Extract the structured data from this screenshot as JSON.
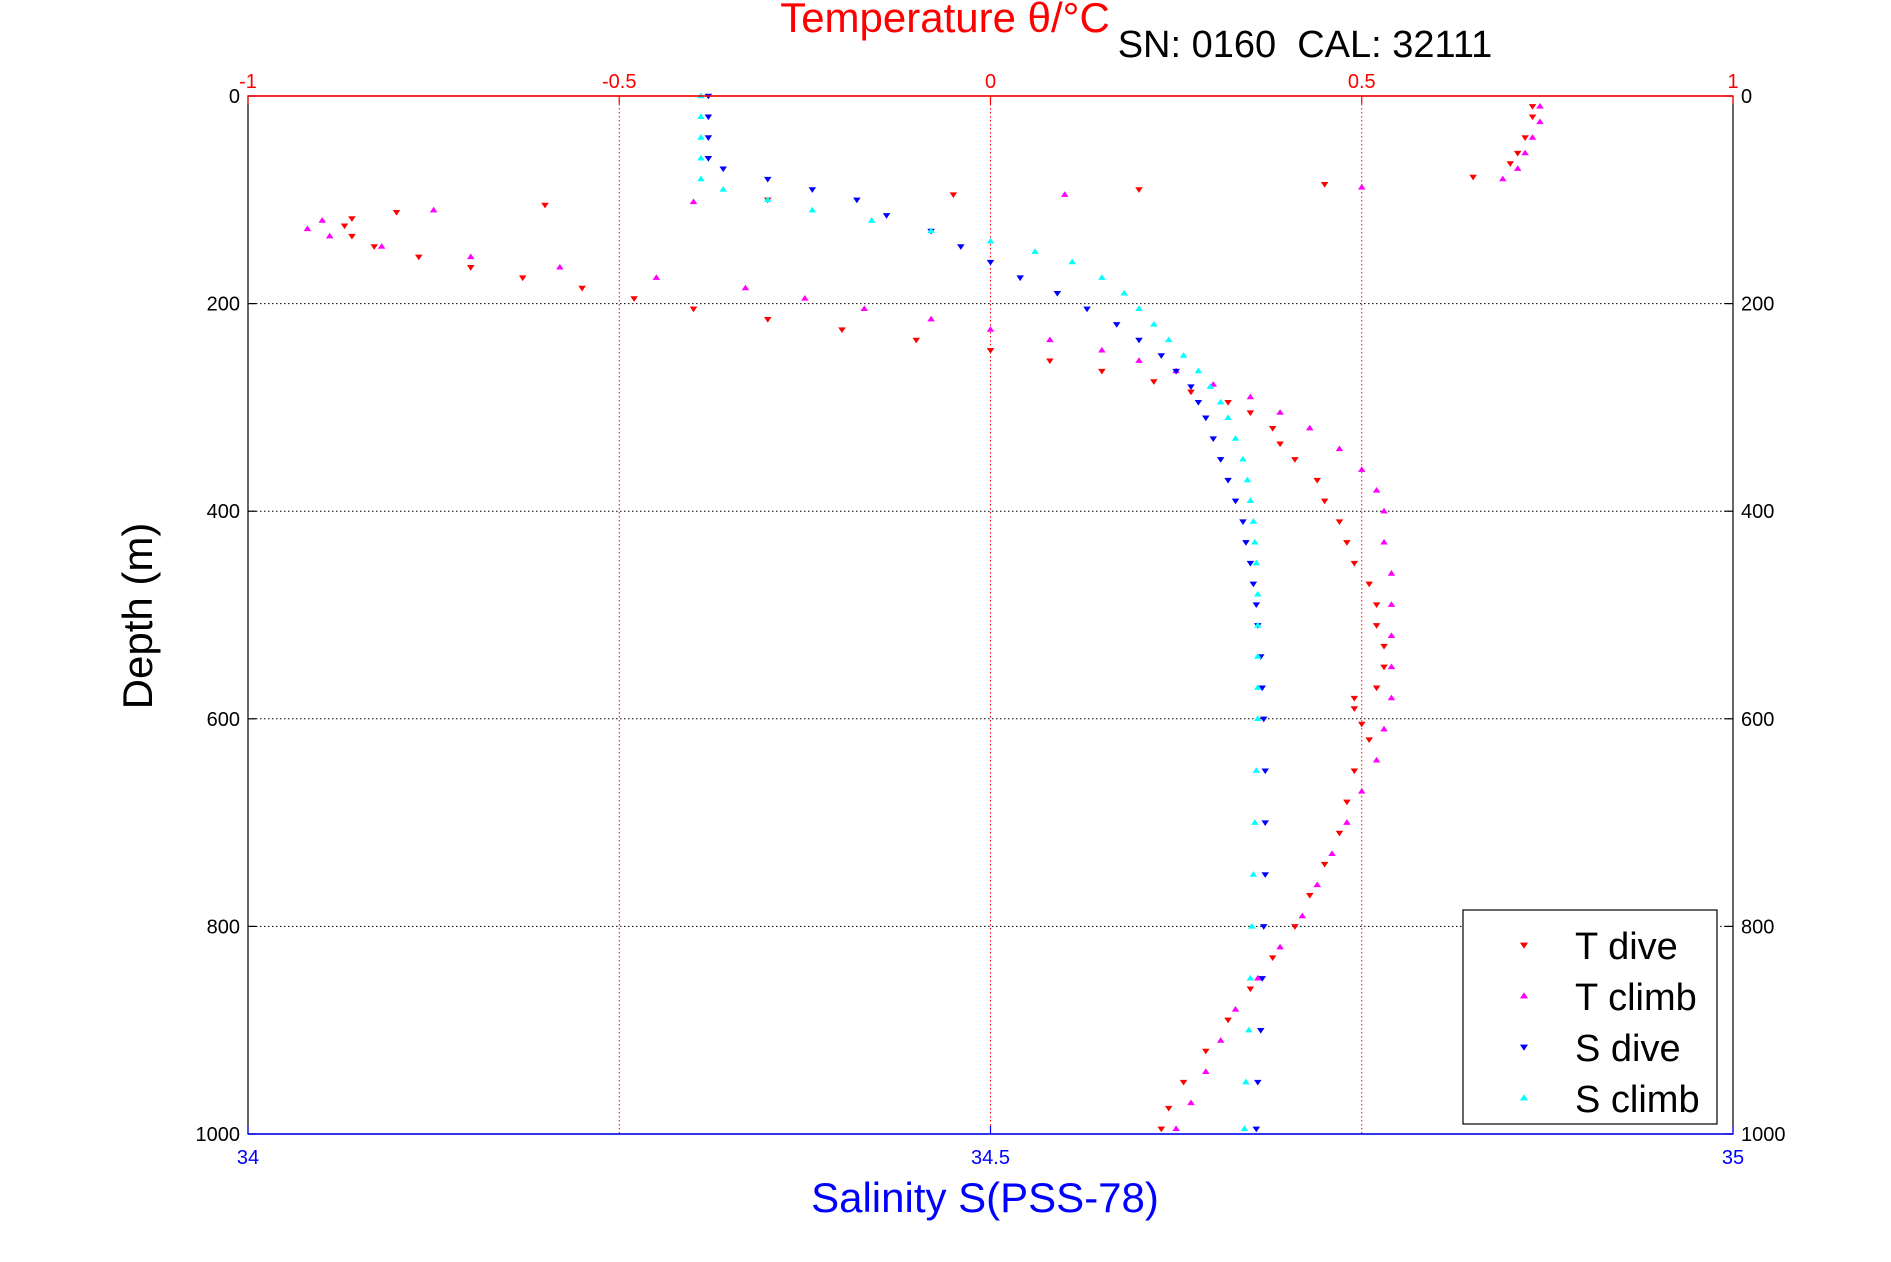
{
  "header": {
    "instrument_text": "SN: 0160  CAL: 32111"
  },
  "chart_data": {
    "type": "scatter",
    "title": "Temperature θ/°C",
    "ylabel": "Depth (m)",
    "xlabel": "Salinity S(PSS-78)",
    "top_axis": {
      "label": "Temperature θ/°C",
      "range": [
        -1,
        1
      ],
      "ticks": [
        -1,
        -0.5,
        0,
        0.5,
        1
      ],
      "tick_labels": [
        "-1",
        "-0.5",
        "0",
        "0.5",
        "1"
      ],
      "color": "#ff0000"
    },
    "bottom_axis": {
      "label": "Salinity S(PSS-78)",
      "range": [
        34,
        35
      ],
      "ticks": [
        34,
        34.5,
        35
      ],
      "tick_labels": [
        "34",
        "34.5",
        "35"
      ],
      "color": "#0000ff"
    },
    "y_axis": {
      "range": [
        0,
        1000
      ],
      "reversed": true,
      "ticks": [
        0,
        200,
        400,
        600,
        800,
        1000
      ],
      "tick_labels": [
        "0",
        "200",
        "400",
        "600",
        "800",
        "1000"
      ]
    },
    "grid": true,
    "legend_position": "bottom-right",
    "series": [
      {
        "name": "T dive",
        "axis": "temperature",
        "color": "#ff0000",
        "marker": "triangle-down",
        "points": [
          [
            0.73,
            10
          ],
          [
            0.73,
            20
          ],
          [
            0.72,
            40
          ],
          [
            0.71,
            55
          ],
          [
            0.7,
            65
          ],
          [
            0.65,
            78
          ],
          [
            0.45,
            85
          ],
          [
            0.2,
            90
          ],
          [
            -0.05,
            95
          ],
          [
            -0.3,
            100
          ],
          [
            -0.6,
            105
          ],
          [
            -0.8,
            112
          ],
          [
            -0.86,
            118
          ],
          [
            -0.87,
            125
          ],
          [
            -0.86,
            135
          ],
          [
            -0.83,
            145
          ],
          [
            -0.77,
            155
          ],
          [
            -0.7,
            165
          ],
          [
            -0.63,
            175
          ],
          [
            -0.55,
            185
          ],
          [
            -0.48,
            195
          ],
          [
            -0.4,
            205
          ],
          [
            -0.3,
            215
          ],
          [
            -0.2,
            225
          ],
          [
            -0.1,
            235
          ],
          [
            0.0,
            245
          ],
          [
            0.08,
            255
          ],
          [
            0.15,
            265
          ],
          [
            0.22,
            275
          ],
          [
            0.27,
            285
          ],
          [
            0.32,
            295
          ],
          [
            0.35,
            305
          ],
          [
            0.38,
            320
          ],
          [
            0.39,
            335
          ],
          [
            0.41,
            350
          ],
          [
            0.44,
            370
          ],
          [
            0.45,
            390
          ],
          [
            0.47,
            410
          ],
          [
            0.48,
            430
          ],
          [
            0.49,
            450
          ],
          [
            0.51,
            470
          ],
          [
            0.52,
            490
          ],
          [
            0.52,
            510
          ],
          [
            0.53,
            530
          ],
          [
            0.53,
            550
          ],
          [
            0.52,
            570
          ],
          [
            0.49,
            580
          ],
          [
            0.49,
            590
          ],
          [
            0.5,
            605
          ],
          [
            0.51,
            620
          ],
          [
            0.49,
            650
          ],
          [
            0.48,
            680
          ],
          [
            0.47,
            710
          ],
          [
            0.45,
            740
          ],
          [
            0.43,
            770
          ],
          [
            0.41,
            800
          ],
          [
            0.38,
            830
          ],
          [
            0.35,
            860
          ],
          [
            0.32,
            890
          ],
          [
            0.29,
            920
          ],
          [
            0.26,
            950
          ],
          [
            0.24,
            975
          ],
          [
            0.23,
            995
          ]
        ]
      },
      {
        "name": "T climb",
        "axis": "temperature",
        "color": "#ff00ff",
        "marker": "triangle-up",
        "points": [
          [
            0.74,
            10
          ],
          [
            0.74,
            25
          ],
          [
            0.73,
            40
          ],
          [
            0.72,
            55
          ],
          [
            0.71,
            70
          ],
          [
            0.69,
            80
          ],
          [
            0.5,
            88
          ],
          [
            0.1,
            95
          ],
          [
            -0.4,
            102
          ],
          [
            -0.75,
            110
          ],
          [
            -0.9,
            120
          ],
          [
            -0.92,
            128
          ],
          [
            -0.89,
            135
          ],
          [
            -0.82,
            145
          ],
          [
            -0.7,
            155
          ],
          [
            -0.58,
            165
          ],
          [
            -0.45,
            175
          ],
          [
            -0.33,
            185
          ],
          [
            -0.25,
            195
          ],
          [
            -0.17,
            205
          ],
          [
            -0.08,
            215
          ],
          [
            0.0,
            225
          ],
          [
            0.08,
            235
          ],
          [
            0.15,
            245
          ],
          [
            0.2,
            255
          ],
          [
            0.25,
            265
          ],
          [
            0.3,
            278
          ],
          [
            0.35,
            290
          ],
          [
            0.39,
            305
          ],
          [
            0.43,
            320
          ],
          [
            0.47,
            340
          ],
          [
            0.5,
            360
          ],
          [
            0.52,
            380
          ],
          [
            0.53,
            400
          ],
          [
            0.53,
            430
          ],
          [
            0.54,
            460
          ],
          [
            0.54,
            490
          ],
          [
            0.54,
            520
          ],
          [
            0.54,
            550
          ],
          [
            0.54,
            580
          ],
          [
            0.53,
            610
          ],
          [
            0.52,
            640
          ],
          [
            0.5,
            670
          ],
          [
            0.48,
            700
          ],
          [
            0.46,
            730
          ],
          [
            0.44,
            760
          ],
          [
            0.42,
            790
          ],
          [
            0.39,
            820
          ],
          [
            0.36,
            850
          ],
          [
            0.33,
            880
          ],
          [
            0.31,
            910
          ],
          [
            0.29,
            940
          ],
          [
            0.27,
            970
          ],
          [
            0.25,
            995
          ]
        ]
      },
      {
        "name": "S dive",
        "axis": "salinity",
        "color": "#0000ff",
        "marker": "triangle-down",
        "points": [
          [
            34.31,
            0
          ],
          [
            34.31,
            20
          ],
          [
            34.31,
            40
          ],
          [
            34.31,
            60
          ],
          [
            34.32,
            70
          ],
          [
            34.35,
            80
          ],
          [
            34.38,
            90
          ],
          [
            34.41,
            100
          ],
          [
            34.43,
            115
          ],
          [
            34.46,
            130
          ],
          [
            34.48,
            145
          ],
          [
            34.5,
            160
          ],
          [
            34.52,
            175
          ],
          [
            34.545,
            190
          ],
          [
            34.565,
            205
          ],
          [
            34.585,
            220
          ],
          [
            34.6,
            235
          ],
          [
            34.615,
            250
          ],
          [
            34.625,
            265
          ],
          [
            34.635,
            280
          ],
          [
            34.64,
            295
          ],
          [
            34.645,
            310
          ],
          [
            34.65,
            330
          ],
          [
            34.655,
            350
          ],
          [
            34.66,
            370
          ],
          [
            34.665,
            390
          ],
          [
            34.67,
            410
          ],
          [
            34.672,
            430
          ],
          [
            34.675,
            450
          ],
          [
            34.677,
            470
          ],
          [
            34.679,
            490
          ],
          [
            34.68,
            510
          ],
          [
            34.682,
            540
          ],
          [
            34.683,
            570
          ],
          [
            34.684,
            600
          ],
          [
            34.685,
            650
          ],
          [
            34.685,
            700
          ],
          [
            34.685,
            750
          ],
          [
            34.684,
            800
          ],
          [
            34.683,
            850
          ],
          [
            34.682,
            900
          ],
          [
            34.68,
            950
          ],
          [
            34.679,
            995
          ]
        ]
      },
      {
        "name": "S climb",
        "axis": "salinity",
        "color": "#00ffff",
        "marker": "triangle-up",
        "points": [
          [
            34.305,
            0
          ],
          [
            34.305,
            20
          ],
          [
            34.305,
            40
          ],
          [
            34.305,
            60
          ],
          [
            34.305,
            80
          ],
          [
            34.32,
            90
          ],
          [
            34.35,
            100
          ],
          [
            34.38,
            110
          ],
          [
            34.42,
            120
          ],
          [
            34.46,
            130
          ],
          [
            34.5,
            140
          ],
          [
            34.53,
            150
          ],
          [
            34.555,
            160
          ],
          [
            34.575,
            175
          ],
          [
            34.59,
            190
          ],
          [
            34.6,
            205
          ],
          [
            34.61,
            220
          ],
          [
            34.62,
            235
          ],
          [
            34.63,
            250
          ],
          [
            34.64,
            265
          ],
          [
            34.648,
            280
          ],
          [
            34.655,
            295
          ],
          [
            34.66,
            310
          ],
          [
            34.665,
            330
          ],
          [
            34.67,
            350
          ],
          [
            34.673,
            370
          ],
          [
            34.675,
            390
          ],
          [
            34.677,
            410
          ],
          [
            34.678,
            430
          ],
          [
            34.679,
            450
          ],
          [
            34.68,
            480
          ],
          [
            34.68,
            510
          ],
          [
            34.68,
            540
          ],
          [
            34.68,
            570
          ],
          [
            34.68,
            600
          ],
          [
            34.679,
            650
          ],
          [
            34.678,
            700
          ],
          [
            34.677,
            750
          ],
          [
            34.676,
            800
          ],
          [
            34.675,
            850
          ],
          [
            34.674,
            900
          ],
          [
            34.672,
            950
          ],
          [
            34.671,
            995
          ]
        ]
      }
    ]
  }
}
